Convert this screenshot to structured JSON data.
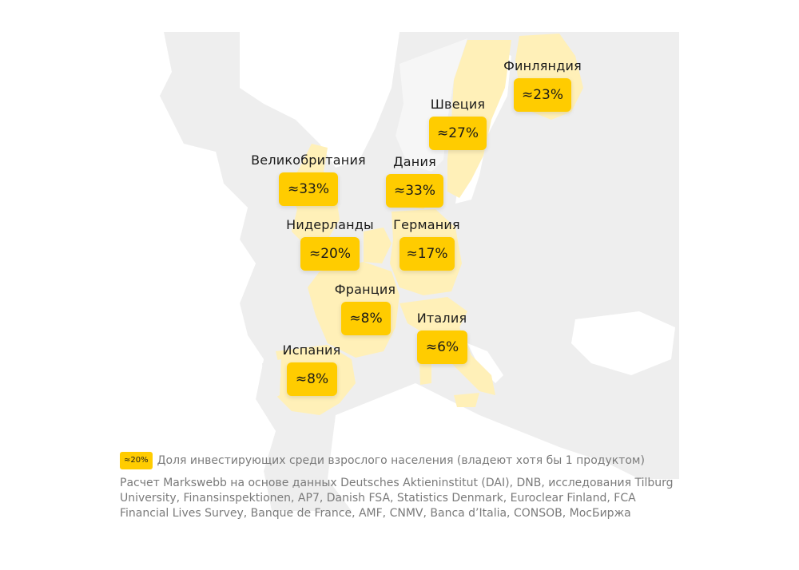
{
  "colors": {
    "land": "#eeeeee",
    "highlight": "#fff0b8",
    "badge": "#ffcc00",
    "label_text": "#1a1a1a",
    "note_text": "#7a7a7a"
  },
  "countries": [
    {
      "id": "finland",
      "name": "Финляндия",
      "value": "≈23%"
    },
    {
      "id": "sweden",
      "name": "Швеция",
      "value": "≈27%"
    },
    {
      "id": "uk",
      "name": "Великобритания",
      "value": "≈33%"
    },
    {
      "id": "denmark",
      "name": "Дания",
      "value": "≈33%"
    },
    {
      "id": "netherlands",
      "name": "Нидерланды",
      "value": "≈20%"
    },
    {
      "id": "germany",
      "name": "Германия",
      "value": "≈17%"
    },
    {
      "id": "france",
      "name": "Франция",
      "value": "≈8%"
    },
    {
      "id": "italy",
      "name": "Италия",
      "value": "≈6%"
    },
    {
      "id": "spain",
      "name": "Испания",
      "value": "≈8%"
    }
  ],
  "legend": {
    "swatch_label": "≈20%",
    "text": "Доля инвестирующих среди взрослого населения  (владеют хотя бы 1 продуктом)"
  },
  "source_note": "Расчет Markswebb на основе данных Deutsches Aktieninstitut (DAI), DNB, исследования Tilburg University, Finansinspektionen, AP7, Danish FSA, Statistics Denmark, Euroclear Finland, FCA Financial Lives Survey, Banque de France, AMF, CNMV, Banca d’Italia, CONSOB, МосБиржа"
}
